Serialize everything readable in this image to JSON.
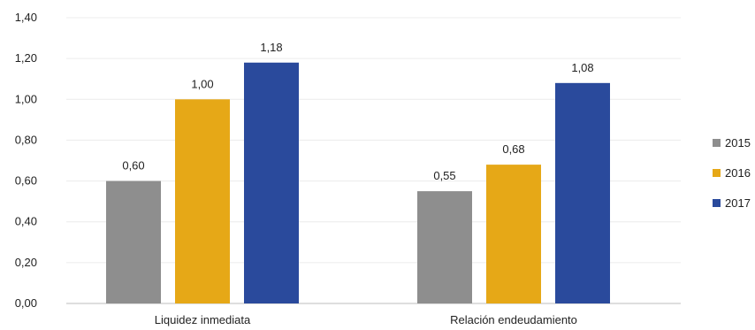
{
  "chart_data": {
    "type": "bar",
    "categories": [
      "Liquidez inmediata",
      "Relación endeudamiento"
    ],
    "series": [
      {
        "name": "2015",
        "values": [
          0.6,
          0.55
        ],
        "labels": [
          "0,60",
          "0,55"
        ],
        "color": "#8e8e8e"
      },
      {
        "name": "2016",
        "values": [
          1.0,
          0.68
        ],
        "labels": [
          "1,00",
          "0,68"
        ],
        "color": "#e6a817"
      },
      {
        "name": "2017",
        "values": [
          1.18,
          1.08
        ],
        "labels": [
          "1,18",
          "1,08"
        ],
        "color": "#2a4a9c"
      }
    ],
    "y_ticks": [
      0,
      0.2,
      0.4,
      0.6,
      0.8,
      1.0,
      1.2,
      1.4
    ],
    "y_tick_labels": [
      "0,00",
      "0,20",
      "0,40",
      "0,60",
      "0,80",
      "1,00",
      "1,20",
      "1,40"
    ],
    "ylim": [
      0,
      1.4
    ],
    "grid": true,
    "legend_position": "right",
    "title": "",
    "xlabel": "",
    "ylabel": ""
  }
}
